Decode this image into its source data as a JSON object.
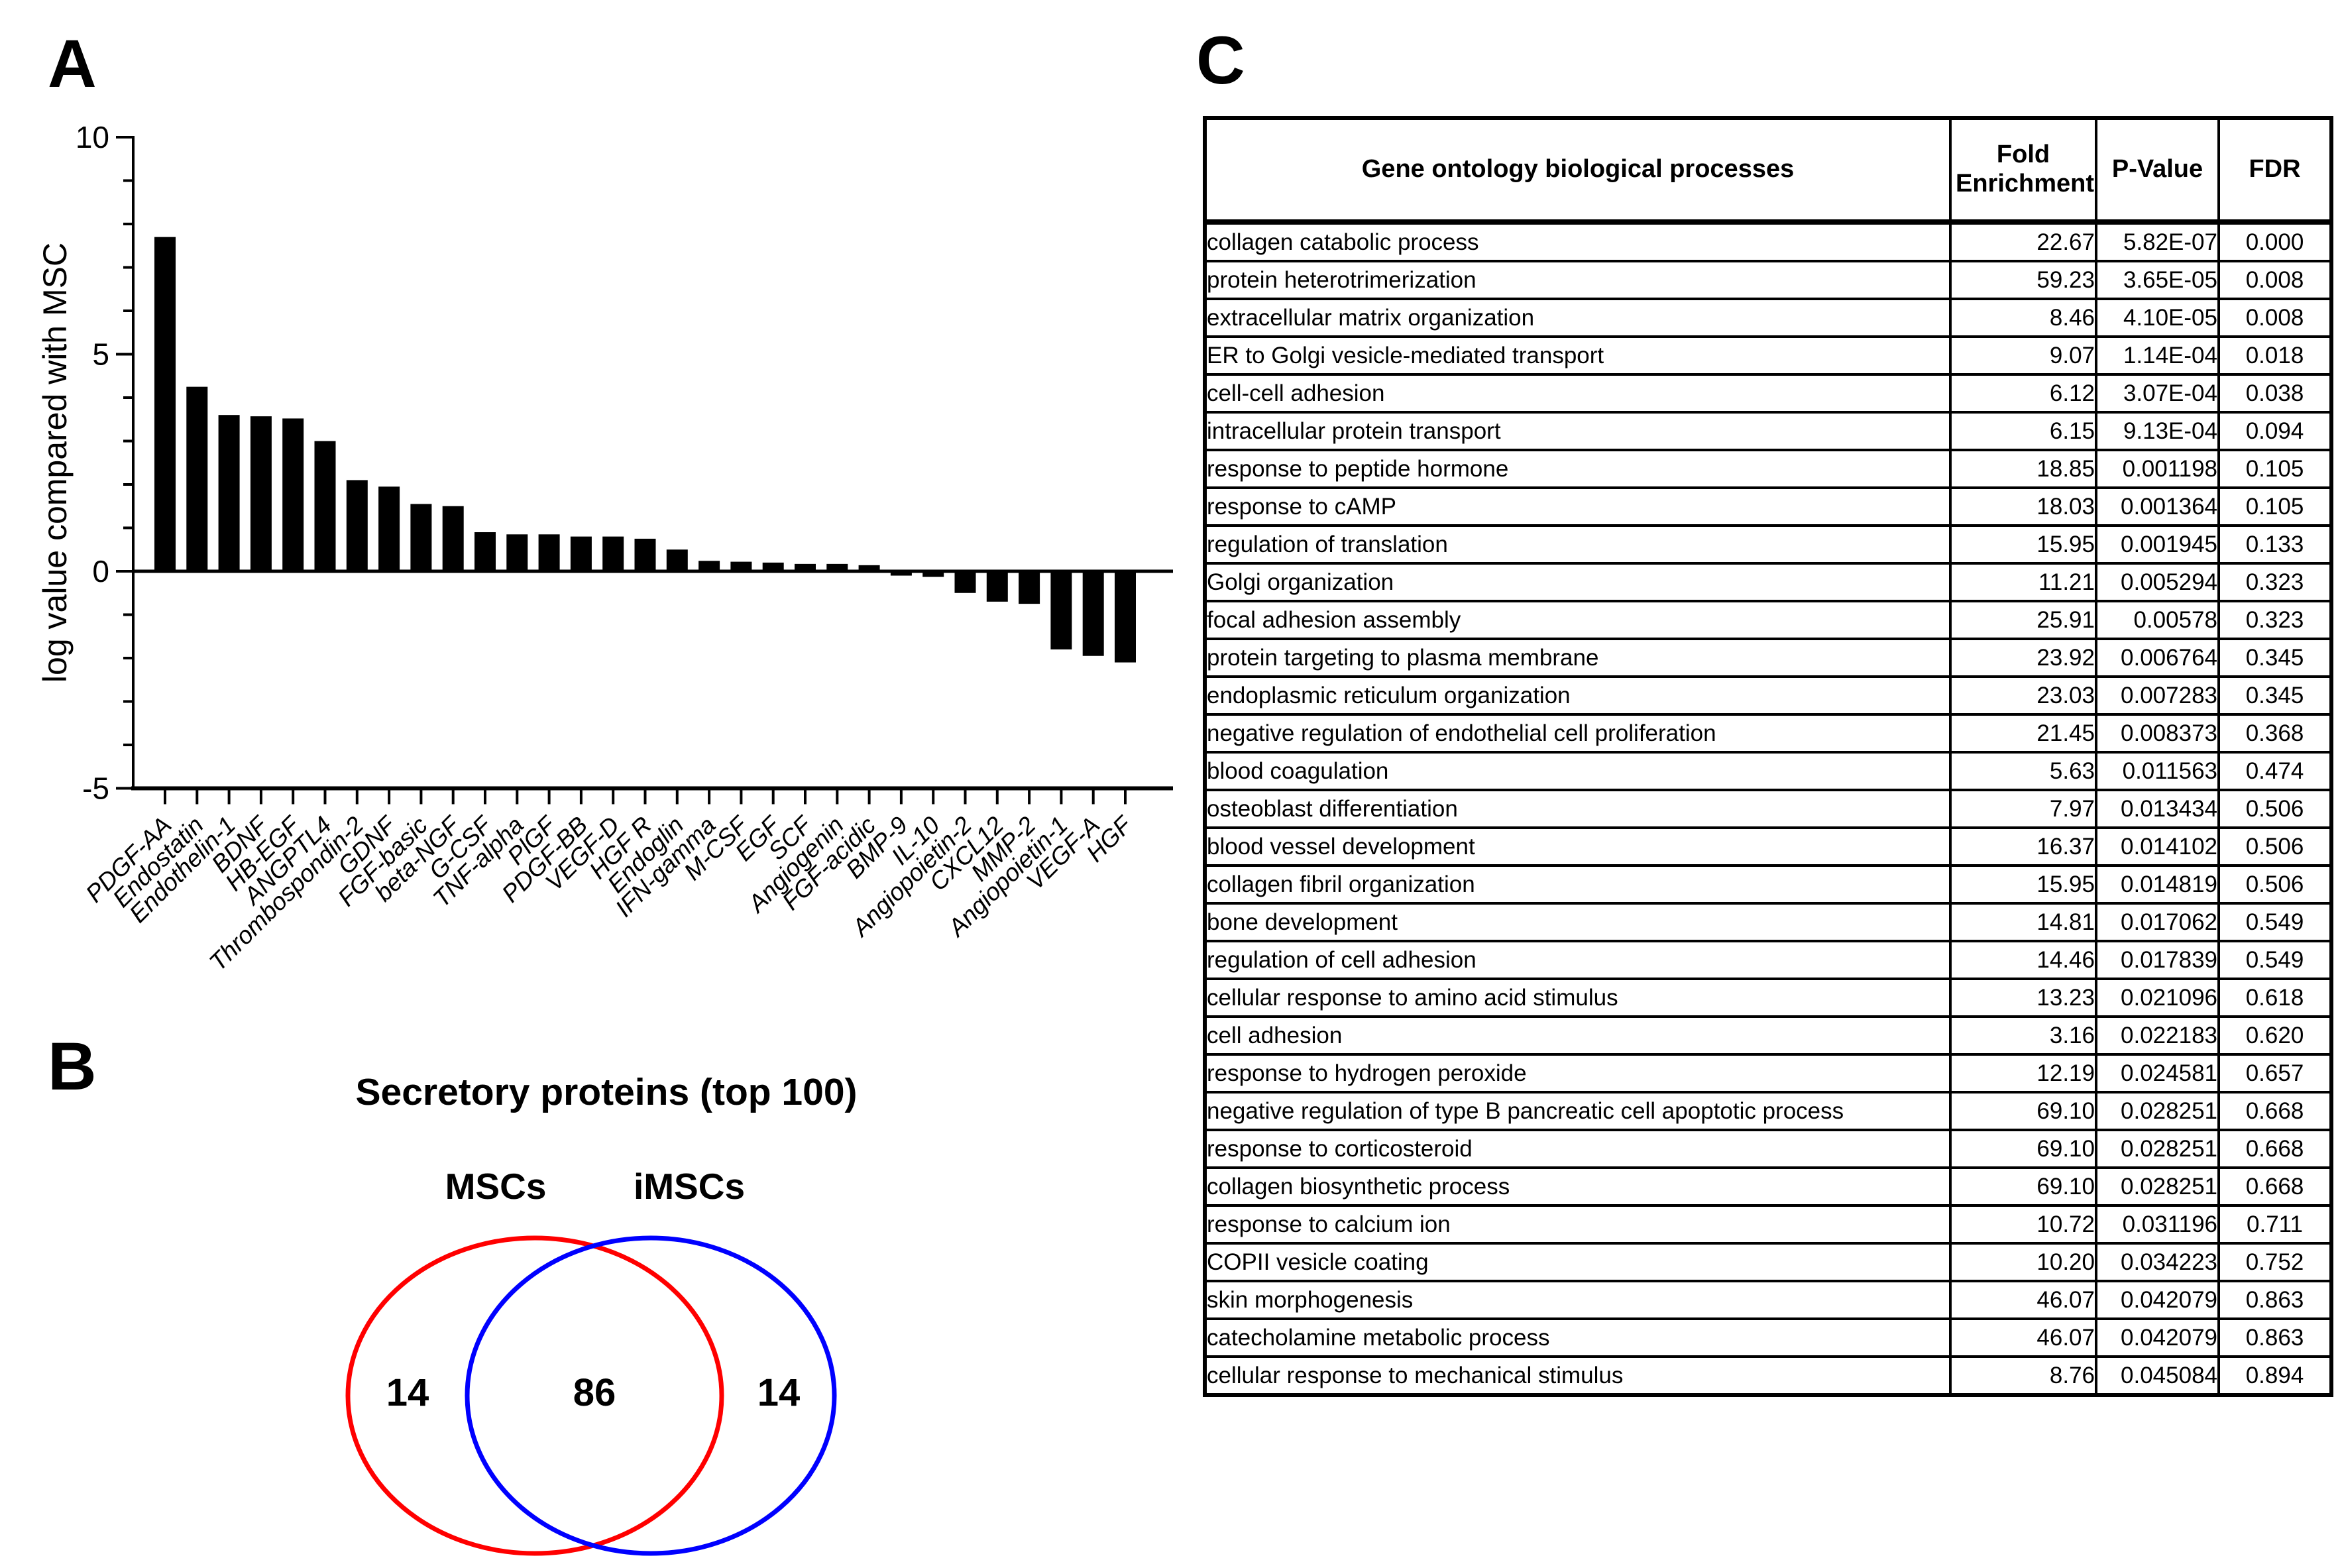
{
  "panels": {
    "a": "A",
    "b": "B",
    "c": "C"
  },
  "chart_data": {
    "type": "bar",
    "title": "",
    "xlabel": "",
    "ylabel": "log value compared with MSC",
    "ylim": [
      -5,
      10
    ],
    "yticks": [
      -5,
      0,
      5,
      10
    ],
    "grid": false,
    "legend": "none",
    "bar_color": "#000000",
    "categories": [
      "PDGF-AA",
      "Endostatin",
      "Endothelin-1",
      "BDNF",
      "HB-EGF",
      "ANGPTL4",
      "Thrombospondin-2",
      "GDNF",
      "FGF-basic",
      "beta-NGF",
      "G-CSF",
      "TNF-alpha",
      "PlGF",
      "PDGF-BB",
      "VEGF-D",
      "HGF R",
      "Endoglin",
      "IFN-gamma",
      "M-CSF",
      "EGF",
      "SCF",
      "Angiogenin",
      "FGF-acidic",
      "BMP-9",
      "IL-10",
      "Angiopoietin-2",
      "CXCL12",
      "MMP-2",
      "Angiopoietin-1",
      "VEGF-A",
      "HGF"
    ],
    "values": [
      7.7,
      4.25,
      3.6,
      3.57,
      3.52,
      3.0,
      2.1,
      1.95,
      1.55,
      1.5,
      0.9,
      0.85,
      0.85,
      0.8,
      0.8,
      0.75,
      0.5,
      0.24,
      0.22,
      0.2,
      0.17,
      0.17,
      0.14,
      -0.1,
      -0.13,
      -0.5,
      -0.7,
      -0.75,
      -1.8,
      -1.95,
      -2.1
    ]
  },
  "venn": {
    "title": "Secretory proteins (top 100)",
    "left_label": "MSCs",
    "right_label": "iMSCs",
    "left_only": "14",
    "overlap": "86",
    "right_only": "14",
    "left_color": "#ff0000",
    "right_color": "#0000ff"
  },
  "table": {
    "headers": [
      "Gene ontology biological processes",
      "Fold Enrichment",
      "P-Value",
      "FDR"
    ],
    "rows": [
      [
        "collagen catabolic process",
        "22.67",
        "5.82E-07",
        "0.000"
      ],
      [
        "protein heterotrimerization",
        "59.23",
        "3.65E-05",
        "0.008"
      ],
      [
        "extracellular matrix organization",
        "8.46",
        "4.10E-05",
        "0.008"
      ],
      [
        "ER to Golgi vesicle-mediated transport",
        "9.07",
        "1.14E-04",
        "0.018"
      ],
      [
        "cell-cell adhesion",
        "6.12",
        "3.07E-04",
        "0.038"
      ],
      [
        "intracellular protein transport",
        "6.15",
        "9.13E-04",
        "0.094"
      ],
      [
        "response to peptide hormone",
        "18.85",
        "0.001198",
        "0.105"
      ],
      [
        "response to cAMP",
        "18.03",
        "0.001364",
        "0.105"
      ],
      [
        "regulation of translation",
        "15.95",
        "0.001945",
        "0.133"
      ],
      [
        "Golgi organization",
        "11.21",
        "0.005294",
        "0.323"
      ],
      [
        "focal adhesion assembly",
        "25.91",
        "0.00578",
        "0.323"
      ],
      [
        "protein targeting to plasma membrane",
        "23.92",
        "0.006764",
        "0.345"
      ],
      [
        "endoplasmic reticulum organization",
        "23.03",
        "0.007283",
        "0.345"
      ],
      [
        "negative regulation of endothelial cell proliferation",
        "21.45",
        "0.008373",
        "0.368"
      ],
      [
        "blood coagulation",
        "5.63",
        "0.011563",
        "0.474"
      ],
      [
        "osteoblast differentiation",
        "7.97",
        "0.013434",
        "0.506"
      ],
      [
        "blood vessel development",
        "16.37",
        "0.014102",
        "0.506"
      ],
      [
        "collagen fibril organization",
        "15.95",
        "0.014819",
        "0.506"
      ],
      [
        "bone development",
        "14.81",
        "0.017062",
        "0.549"
      ],
      [
        "regulation of cell adhesion",
        "14.46",
        "0.017839",
        "0.549"
      ],
      [
        "cellular response to amino acid stimulus",
        "13.23",
        "0.021096",
        "0.618"
      ],
      [
        "cell adhesion",
        "3.16",
        "0.022183",
        "0.620"
      ],
      [
        "response to hydrogen peroxide",
        "12.19",
        "0.024581",
        "0.657"
      ],
      [
        "negative regulation of type B pancreatic cell apoptotic process",
        "69.10",
        "0.028251",
        "0.668"
      ],
      [
        "response to corticosteroid",
        "69.10",
        "0.028251",
        "0.668"
      ],
      [
        "collagen biosynthetic process",
        "69.10",
        "0.028251",
        "0.668"
      ],
      [
        "response to calcium ion",
        "10.72",
        "0.031196",
        "0.711"
      ],
      [
        "COPII vesicle coating",
        "10.20",
        "0.034223",
        "0.752"
      ],
      [
        "skin morphogenesis",
        "46.07",
        "0.042079",
        "0.863"
      ],
      [
        "catecholamine metabolic process",
        "46.07",
        "0.042079",
        "0.863"
      ],
      [
        "cellular response to mechanical stimulus",
        "8.76",
        "0.045084",
        "0.894"
      ]
    ]
  }
}
